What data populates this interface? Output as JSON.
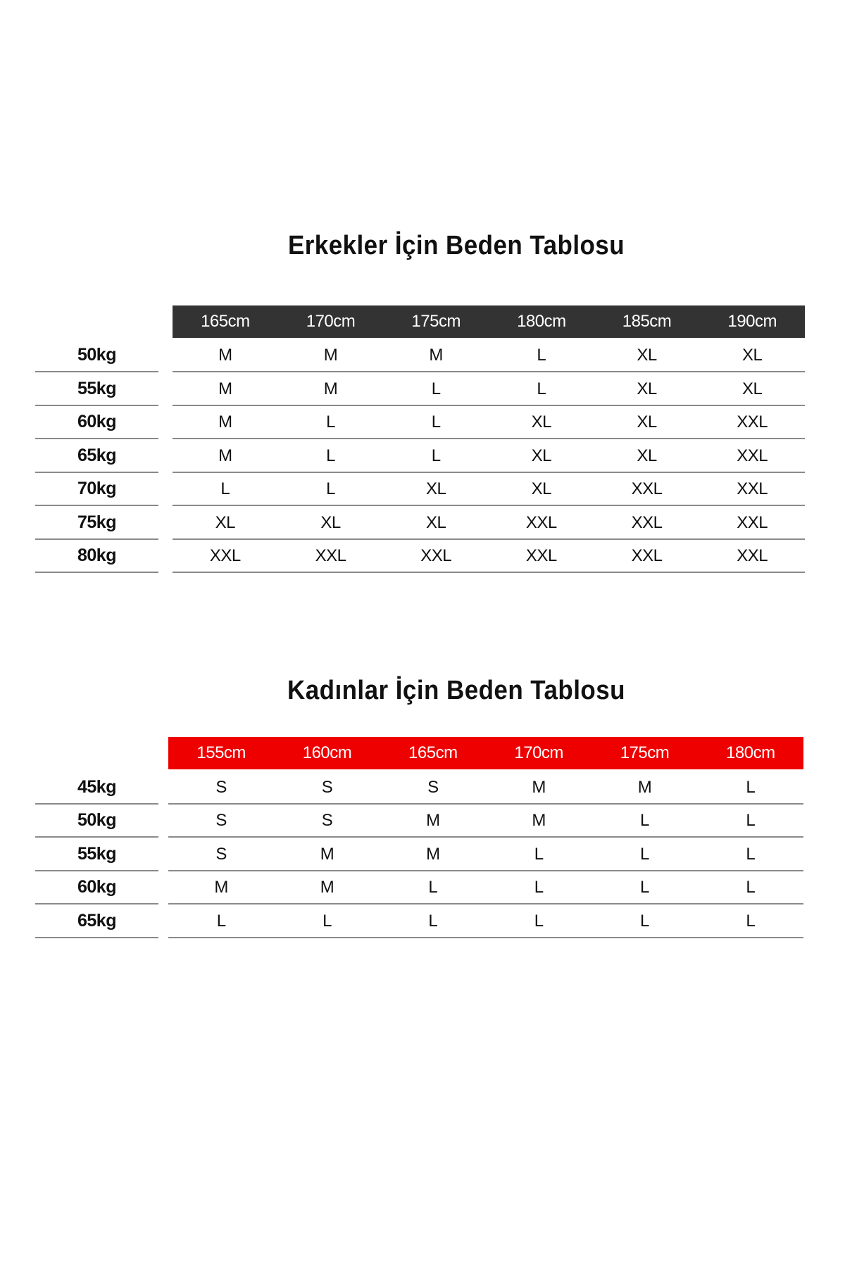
{
  "men": {
    "title": "Erkekler İçin Beden Tablosu",
    "header_color": "#333333",
    "heights": [
      "165cm",
      "170cm",
      "175cm",
      "180cm",
      "185cm",
      "190cm"
    ],
    "rows": [
      {
        "weight": "50kg",
        "sizes": [
          "M",
          "M",
          "M",
          "L",
          "XL",
          "XL"
        ]
      },
      {
        "weight": "55kg",
        "sizes": [
          "M",
          "M",
          "L",
          "L",
          "XL",
          "XL"
        ]
      },
      {
        "weight": "60kg",
        "sizes": [
          "M",
          "L",
          "L",
          "XL",
          "XL",
          "XXL"
        ]
      },
      {
        "weight": "65kg",
        "sizes": [
          "M",
          "L",
          "L",
          "XL",
          "XL",
          "XXL"
        ]
      },
      {
        "weight": "70kg",
        "sizes": [
          "L",
          "L",
          "XL",
          "XL",
          "XXL",
          "XXL"
        ]
      },
      {
        "weight": "75kg",
        "sizes": [
          "XL",
          "XL",
          "XL",
          "XXL",
          "XXL",
          "XXL"
        ]
      },
      {
        "weight": "80kg",
        "sizes": [
          "XXL",
          "XXL",
          "XXL",
          "XXL",
          "XXL",
          "XXL"
        ]
      }
    ]
  },
  "women": {
    "title": "Kadınlar İçin Beden Tablosu",
    "header_color": "#ee0000",
    "heights": [
      "155cm",
      "160cm",
      "165cm",
      "170cm",
      "175cm",
      "180cm"
    ],
    "rows": [
      {
        "weight": "45kg",
        "sizes": [
          "S",
          "S",
          "S",
          "M",
          "M",
          "L"
        ]
      },
      {
        "weight": "50kg",
        "sizes": [
          "S",
          "S",
          "M",
          "M",
          "L",
          "L"
        ]
      },
      {
        "weight": "55kg",
        "sizes": [
          "S",
          "M",
          "M",
          "L",
          "L",
          "L"
        ]
      },
      {
        "weight": "60kg",
        "sizes": [
          "M",
          "M",
          "L",
          "L",
          "L",
          "L"
        ]
      },
      {
        "weight": "65kg",
        "sizes": [
          "L",
          "L",
          "L",
          "L",
          "L",
          "L"
        ]
      }
    ]
  }
}
